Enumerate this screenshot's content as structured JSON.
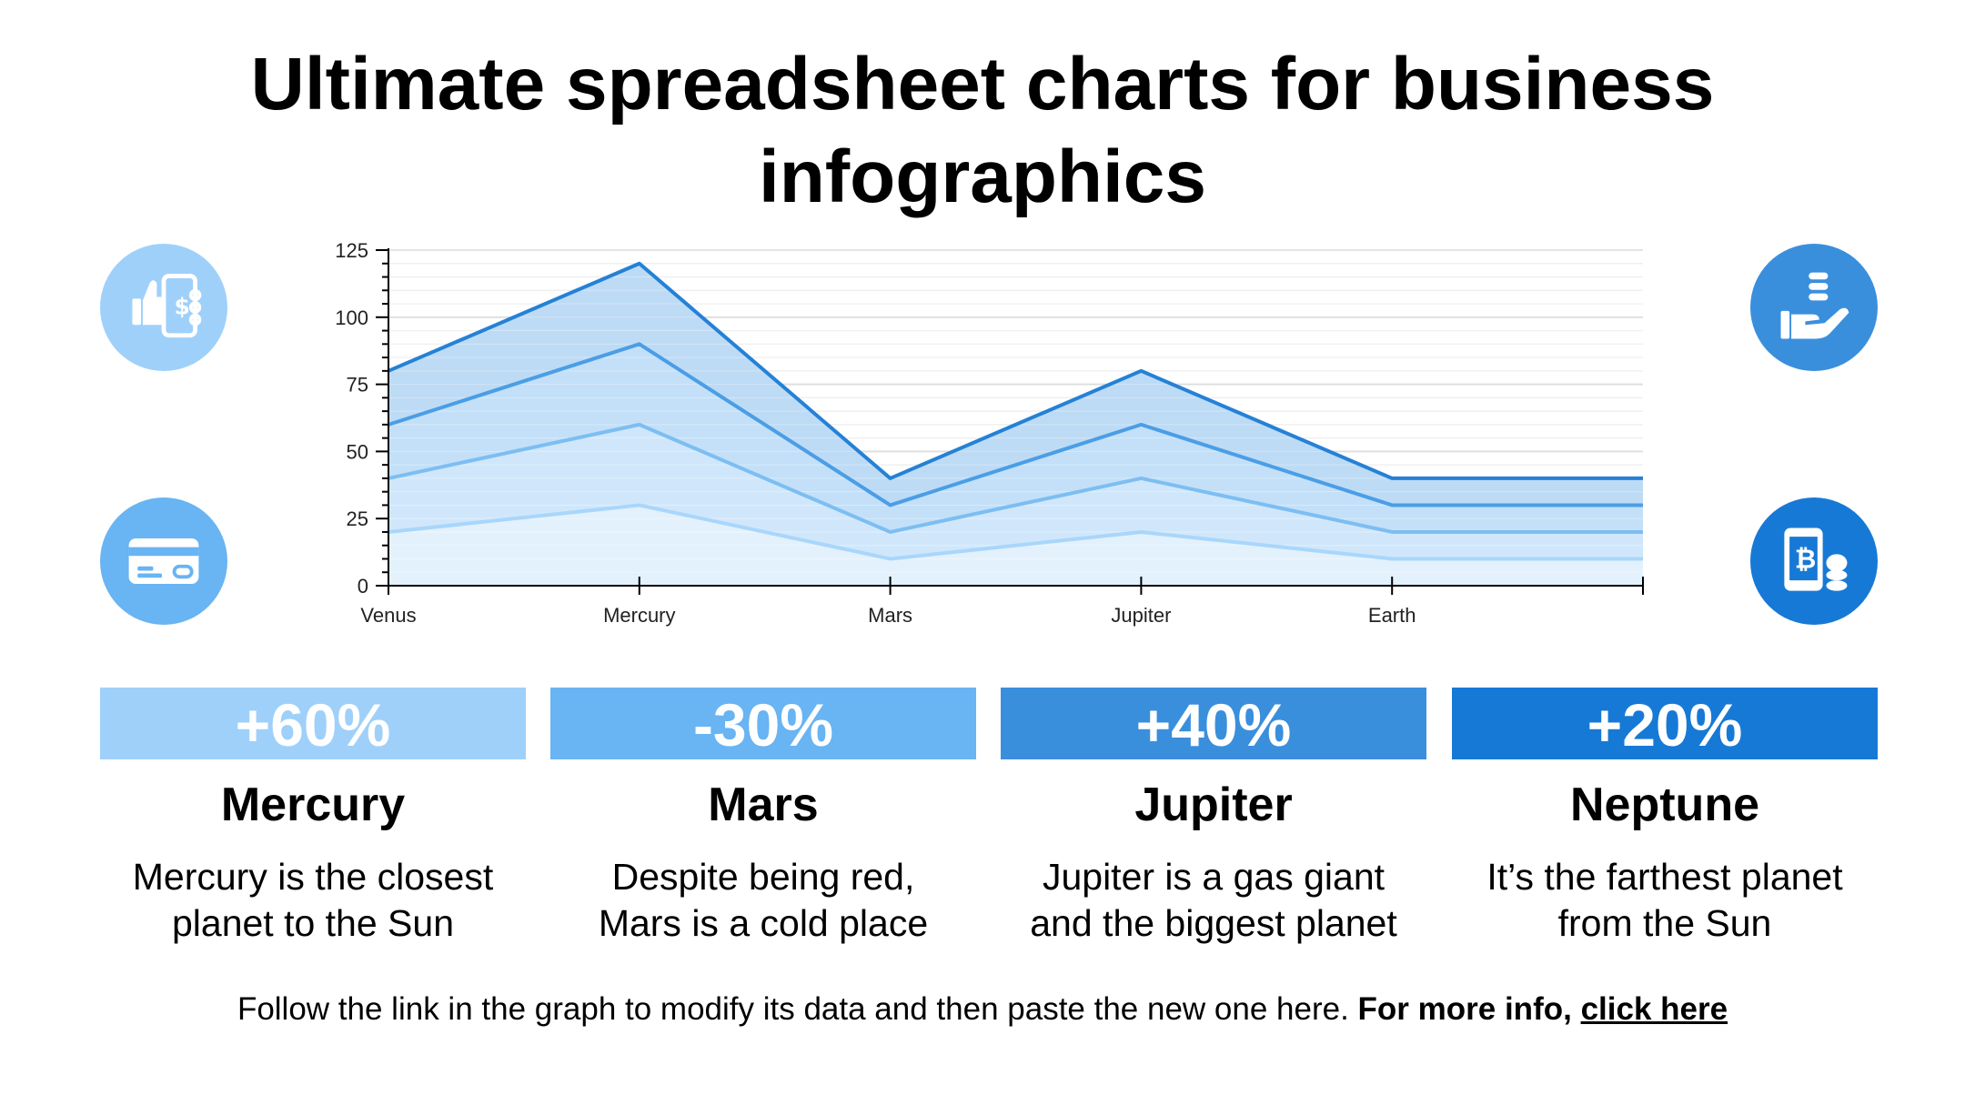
{
  "title": "Ultimate spreadsheet charts for business infographics",
  "colors": {
    "light": "#9fd0fa",
    "medium_light": "#69b4f2",
    "medium": "#3a8fdd",
    "dark": "#1779d6"
  },
  "icons": [
    {
      "name": "mobile-payment-like-icon",
      "color": "#9fd0fa"
    },
    {
      "name": "credit-card-icon",
      "color": "#69b4f2"
    },
    {
      "name": "hand-coins-icon",
      "color": "#3a8fdd"
    },
    {
      "name": "mobile-bitcoin-icon",
      "color": "#1779d6"
    }
  ],
  "chart_data": {
    "type": "area",
    "categories": [
      "Venus",
      "Mercury",
      "Mars",
      "Jupiter",
      "Earth",
      ""
    ],
    "yticks": [
      "0",
      "25",
      "50",
      "75",
      "100",
      "125"
    ],
    "ylim": [
      0,
      125
    ],
    "grid": true,
    "series": [
      {
        "values": [
          20,
          30,
          10,
          20,
          10,
          10
        ],
        "color": "#a9d6fb"
      },
      {
        "values": [
          40,
          60,
          20,
          40,
          20,
          20
        ],
        "color": "#7dbef2"
      },
      {
        "values": [
          60,
          90,
          30,
          60,
          30,
          30
        ],
        "color": "#4a9ee6"
      },
      {
        "values": [
          80,
          120,
          40,
          80,
          40,
          40
        ],
        "color": "#2481d6"
      }
    ]
  },
  "cards": [
    {
      "stat": "+60%",
      "name": "Mercury",
      "desc_line1": "Mercury is the closest",
      "desc_line2": "planet to the Sun",
      "color": "#9fd0fa"
    },
    {
      "stat": "-30%",
      "name": "Mars",
      "desc_line1": "Despite being red,",
      "desc_line2": "Mars is a cold place",
      "color": "#69b4f2"
    },
    {
      "stat": "+40%",
      "name": "Jupiter",
      "desc_line1": "Jupiter is a gas giant",
      "desc_line2": "and the biggest planet",
      "color": "#3a8fdd"
    },
    {
      "stat": "+20%",
      "name": "Neptune",
      "desc_line1": "It’s the farthest planet",
      "desc_line2": "from the Sun",
      "color": "#1779d6"
    }
  ],
  "footer": {
    "text": "Follow the link in the graph to modify its data and then paste the new one here.",
    "bold": "For more info,",
    "link": "click here"
  }
}
